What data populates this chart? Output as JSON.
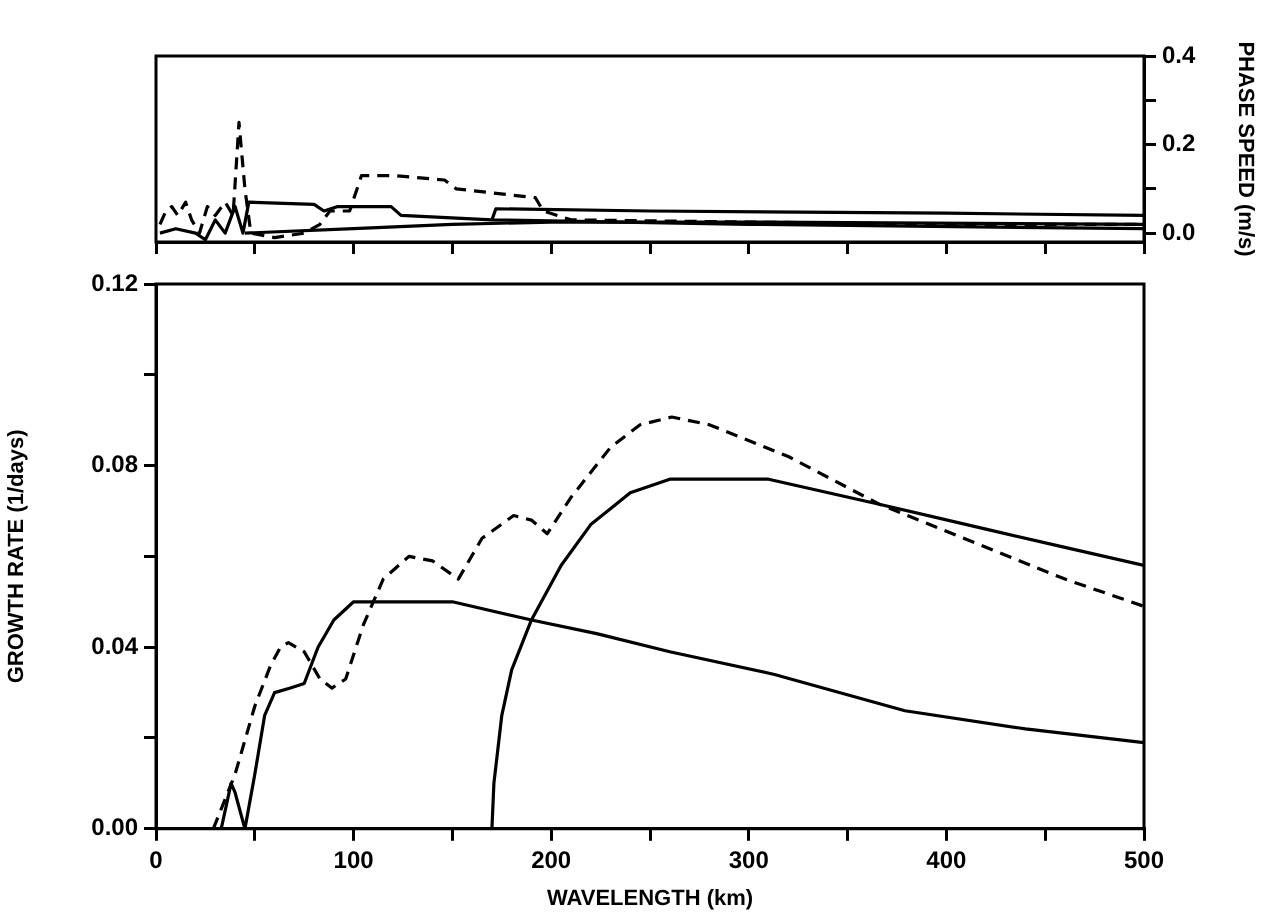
{
  "chart_data": [
    {
      "type": "line",
      "y2label": "PHASE SPEED (m/s)",
      "xlim": [
        0,
        500
      ],
      "xticks": [
        {
          "value": 0,
          "label": null
        },
        {
          "value": 50,
          "label": null
        },
        {
          "value": 100,
          "label": null
        },
        {
          "value": 150,
          "label": null
        },
        {
          "value": 200,
          "label": null
        },
        {
          "value": 250,
          "label": null
        },
        {
          "value": 300,
          "label": null
        },
        {
          "value": 350,
          "label": null
        },
        {
          "value": 400,
          "label": null
        },
        {
          "value": 450,
          "label": null
        },
        {
          "value": 500,
          "label": null
        }
      ],
      "y2lim": [
        -0.02,
        0.4
      ],
      "y2ticks": [
        {
          "value": 0,
          "label": "0.0"
        },
        {
          "value": 0.1,
          "label": null
        },
        {
          "value": 0.2,
          "label": "0.2"
        },
        {
          "value": 0.3,
          "label": null
        },
        {
          "value": 0.4,
          "label": "0.4"
        }
      ],
      "tick_labels": "y",
      "grid": false,
      "legend": false,
      "marker": "none",
      "series": [
        {
          "color": "#000000",
          "line_style": "dashed",
          "axis": "y2",
          "x": [
            2,
            5,
            8,
            11,
            15,
            18,
            22,
            26,
            30,
            35,
            39,
            42,
            45,
            48,
            60,
            75,
            83,
            88,
            98,
            104,
            120,
            146,
            152,
            192,
            196,
            210,
            300,
            400,
            500
          ],
          "values": [
            0.02,
            0.05,
            0.06,
            0.04,
            0.07,
            0.03,
            0.0,
            0.06,
            0.04,
            0.07,
            0.04,
            0.25,
            0.1,
            0.0,
            -0.01,
            0.0,
            0.02,
            0.05,
            0.05,
            0.13,
            0.13,
            0.12,
            0.1,
            0.08,
            0.05,
            0.03,
            0.025,
            0.02,
            0.02
          ]
        },
        {
          "color": "#000000",
          "line_style": "solid",
          "axis": "y2",
          "x": [
            2,
            10,
            20,
            25,
            30,
            35,
            40,
            44,
            47,
            80,
            85,
            92,
            119,
            124,
            170,
            300,
            500
          ],
          "values": [
            0.0,
            0.01,
            0.0,
            -0.015,
            0.03,
            0.0,
            0.06,
            0.0,
            0.07,
            0.065,
            0.05,
            0.06,
            0.06,
            0.04,
            0.03,
            0.02,
            0.01
          ]
        },
        {
          "color": "#000000",
          "line_style": "solid",
          "axis": "y2",
          "x": [
            170,
            172,
            250,
            400,
            500
          ],
          "values": [
            0.03,
            0.055,
            0.05,
            0.045,
            0.04
          ]
        },
        {
          "color": "#000000",
          "line_style": "solid",
          "axis": "y2",
          "x": [
            45,
            100,
            150,
            200,
            300,
            500
          ],
          "values": [
            0.0,
            0.01,
            0.02,
            0.025,
            0.025,
            0.02
          ]
        }
      ]
    },
    {
      "type": "line",
      "xlabel": "WAVELENGTH (km)",
      "ylabel": "GROWTH RATE (1/days)",
      "xlim": [
        0,
        500
      ],
      "xticks": [
        0,
        {
          "value": 50,
          "label": null
        },
        100,
        {
          "value": 150,
          "label": null
        },
        200,
        {
          "value": 250,
          "label": null
        },
        300,
        {
          "value": 350,
          "label": null
        },
        400,
        {
          "value": 450,
          "label": null
        },
        500
      ],
      "ylim": [
        0,
        0.12
      ],
      "yticks": [
        {
          "value": 0,
          "label": "0.00"
        },
        {
          "value": 0.02,
          "label": null
        },
        {
          "value": 0.04,
          "label": "0.04"
        },
        {
          "value": 0.06,
          "label": null
        },
        {
          "value": 0.08,
          "label": "0.08"
        },
        {
          "value": 0.1,
          "label": null
        },
        {
          "value": 0.12,
          "label": "0.12"
        }
      ],
      "grid": false,
      "legend": false,
      "marker": "none",
      "series": [
        {
          "color": "#000000",
          "line_style": "dashed",
          "x": [
            29,
            40,
            50,
            58,
            63,
            67,
            75,
            83,
            89,
            96,
            105,
            115,
            128,
            140,
            153,
            165,
            181,
            190,
            198,
            210,
            230,
            245,
            261,
            280,
            320,
            366,
            420,
            460,
            500
          ],
          "values": [
            0,
            0.012,
            0.027,
            0.036,
            0.04,
            0.041,
            0.039,
            0.033,
            0.031,
            0.033,
            0.045,
            0.055,
            0.06,
            0.059,
            0.055,
            0.064,
            0.069,
            0.068,
            0.065,
            0.073,
            0.084,
            0.089,
            0.0907,
            0.089,
            0.082,
            0.0715,
            0.062,
            0.055,
            0.049
          ]
        },
        {
          "color": "#000000",
          "line_style": "solid",
          "x": [
            33,
            38,
            40,
            45,
            50,
            55,
            60,
            68,
            75,
            82,
            90,
            100,
            150,
            190,
            223,
            260,
            313,
            379,
            440,
            500
          ],
          "values": [
            0,
            0.01,
            0.008,
            0,
            0.012,
            0.025,
            0.03,
            0.031,
            0.032,
            0.04,
            0.046,
            0.05,
            0.05,
            0.046,
            0.043,
            0.039,
            0.034,
            0.026,
            0.022,
            0.019
          ]
        },
        {
          "color": "#000000",
          "line_style": "solid",
          "x": [
            170,
            171,
            175,
            180,
            190,
            205,
            220,
            240,
            260,
            280,
            310,
            366,
            420,
            460,
            500
          ],
          "values": [
            0,
            0.01,
            0.025,
            0.035,
            0.046,
            0.058,
            0.067,
            0.074,
            0.077,
            0.077,
            0.077,
            0.0715,
            0.066,
            0.062,
            0.058
          ]
        }
      ]
    }
  ]
}
